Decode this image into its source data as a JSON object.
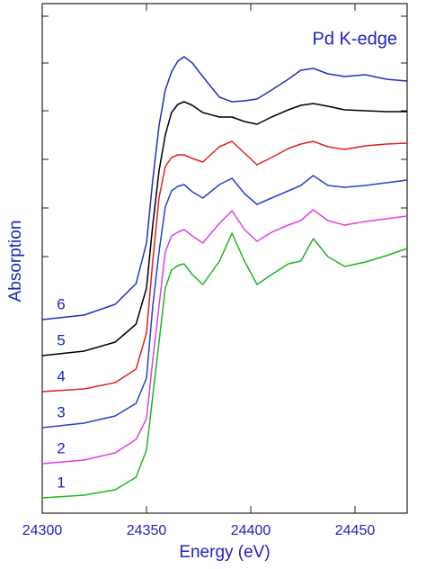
{
  "chart_data": {
    "type": "line",
    "title": "Pd K-edge",
    "xlabel": "Energy (eV)",
    "ylabel": "Absorption",
    "x": [
      24300,
      24320,
      24335,
      24345,
      24350,
      24353,
      24356,
      24359,
      24362,
      24365,
      24368,
      24372,
      24377,
      24385,
      24391,
      24397,
      24403,
      24410,
      24418,
      24424,
      24430,
      24437,
      24445,
      24455,
      24465,
      24475
    ],
    "series": [
      {
        "name": "1",
        "color": "#1fb51f",
        "values": [
          17,
          20,
          26,
          40,
          70,
          130,
          190,
          250,
          270,
          275,
          277,
          265,
          254,
          280,
          311,
          280,
          254,
          265,
          277,
          280,
          305,
          285,
          274,
          279,
          286,
          294
        ]
      },
      {
        "name": "2",
        "color": "#e040e0",
        "values": [
          55,
          59,
          67,
          82,
          105,
          170,
          230,
          290,
          308,
          312,
          315,
          308,
          300,
          322,
          336,
          315,
          302,
          312,
          320,
          325,
          337,
          325,
          320,
          324,
          327,
          330
        ]
      },
      {
        "name": "3",
        "color": "#2244d0",
        "values": [
          95,
          100,
          108,
          122,
          150,
          230,
          290,
          340,
          358,
          363,
          365,
          357,
          350,
          365,
          372,
          355,
          343,
          350,
          358,
          364,
          375,
          364,
          362,
          364,
          367,
          370
        ]
      },
      {
        "name": "4",
        "color": "#e02020",
        "values": [
          135,
          138,
          145,
          160,
          200,
          280,
          350,
          385,
          395,
          398,
          398,
          394,
          390,
          407,
          413,
          400,
          387,
          395,
          405,
          410,
          413,
          407,
          404,
          408,
          410,
          411
        ]
      },
      {
        "name": "5",
        "color": "#000000",
        "values": [
          175,
          180,
          190,
          210,
          250,
          320,
          380,
          420,
          445,
          454,
          457,
          453,
          445,
          440,
          440,
          435,
          432,
          440,
          448,
          453,
          455,
          452,
          448,
          447,
          446,
          446
        ]
      },
      {
        "name": "6",
        "color": "#2030c0",
        "values": [
          215,
          220,
          232,
          255,
          300,
          370,
          430,
          470,
          490,
          502,
          507,
          500,
          485,
          462,
          457,
          458,
          460,
          470,
          482,
          492,
          494,
          488,
          485,
          487,
          482,
          480
        ]
      }
    ],
    "xlim": [
      24300,
      24475
    ],
    "xticks": [
      24300,
      24350,
      24400,
      24450
    ],
    "ylim": [
      0,
      566
    ],
    "yticks": [
      285,
      339,
      393,
      447,
      500,
      552
    ]
  }
}
